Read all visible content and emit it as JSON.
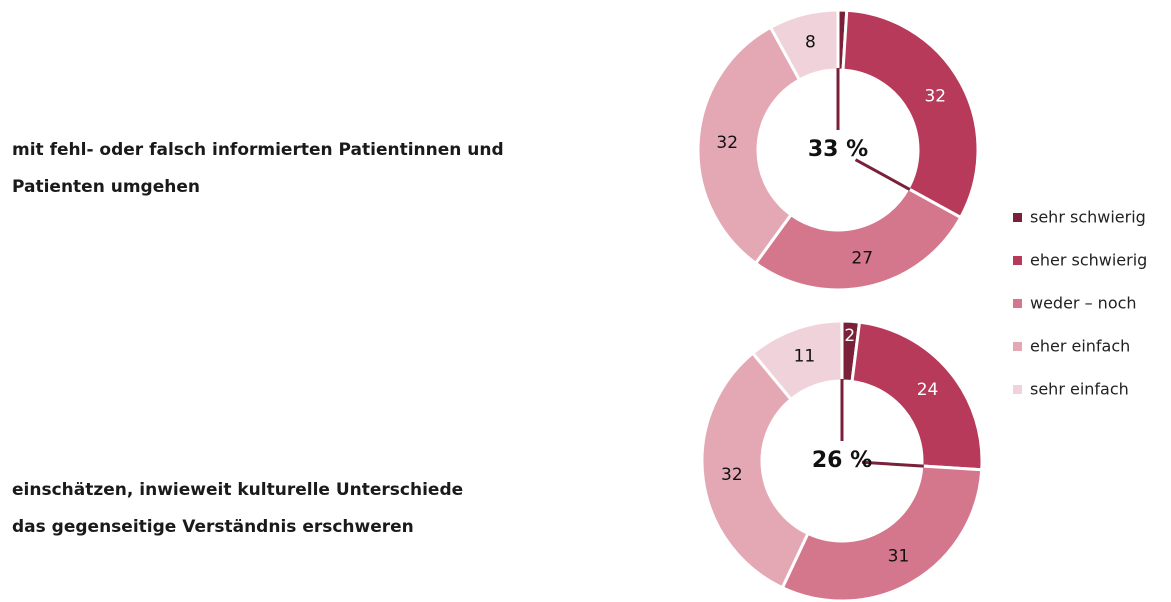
{
  "chart_data": [
    {
      "type": "pie",
      "title": [
        "mit fehl- oder falsch informierten Patientinnen und",
        "Patienten umgehen"
      ],
      "center_label": "33 %",
      "values": [
        1,
        32,
        27,
        32,
        8
      ]
    },
    {
      "type": "pie",
      "title": [
        "einschätzen, inwieweit kulturelle Unterschiede",
        "das gegenseitige Verständnis erschweren"
      ],
      "center_label": "26 %",
      "values": [
        2,
        24,
        31,
        32,
        11
      ]
    }
  ],
  "legend": {
    "categories": [
      "sehr schwierig",
      "eher schwierig",
      "weder – noch",
      "eher einfach",
      "sehr einfach"
    ],
    "colors": [
      "#7a2038",
      "#b83a5a",
      "#d4778c",
      "#e3a8b4",
      "#f0d3da"
    ]
  }
}
